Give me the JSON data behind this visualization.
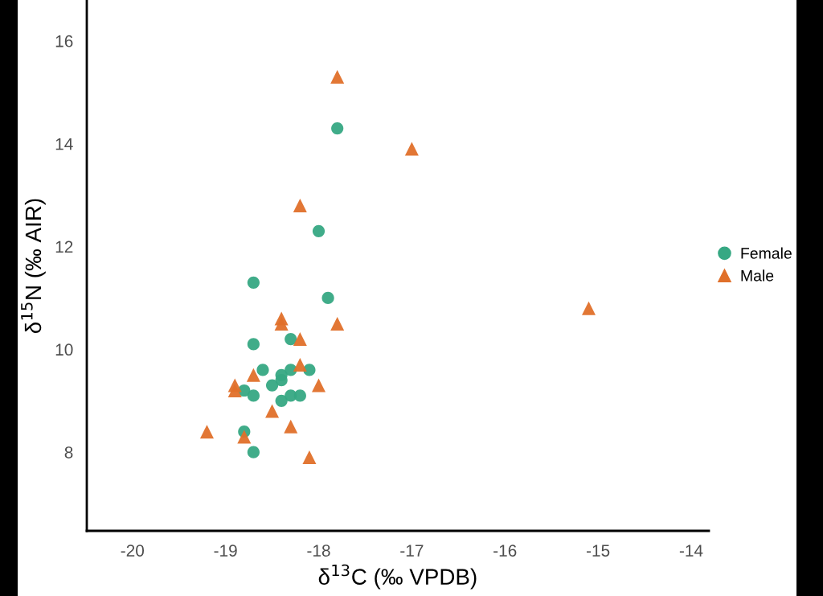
{
  "chart_data": {
    "type": "scatter",
    "xlabel": "δ$^{13}$C (‰ VPDB)",
    "ylabel": "δ$^{15}$N (‰ AIR)",
    "xlim": [
      -20.49,
      -13.81
    ],
    "xticks": [
      -20,
      -19,
      -18,
      -17,
      -16,
      -15,
      -14
    ],
    "ylim": [
      6.47,
      16.78
    ],
    "yticks": [
      8,
      10,
      12,
      14,
      16
    ],
    "grid": false,
    "legend": "right",
    "series": [
      {
        "name": "Female",
        "color": "#36a883",
        "marker": "circle",
        "x": [
          -17.8,
          -18.0,
          -18.7,
          -17.9,
          -18.7,
          -18.3,
          -18.6,
          -18.1,
          -18.3,
          -18.4,
          -18.4,
          -18.5,
          -18.8,
          -18.7,
          -18.3,
          -18.2,
          -18.4,
          -18.8,
          -18.7
        ],
        "values": [
          14.3,
          12.3,
          11.3,
          11.0,
          10.1,
          10.2,
          9.6,
          9.6,
          9.6,
          9.5,
          9.4,
          9.3,
          9.2,
          9.1,
          9.1,
          9.1,
          9.0,
          8.4,
          8.0
        ]
      },
      {
        "name": "Male",
        "color": "#e0702a",
        "marker": "triangle",
        "x": [
          -17.8,
          -17.0,
          -18.2,
          -15.1,
          -18.4,
          -18.4,
          -17.8,
          -18.2,
          -18.2,
          -18.7,
          -18.9,
          -18.9,
          -18.0,
          -18.5,
          -18.3,
          -19.2,
          -18.8,
          -18.1
        ],
        "values": [
          15.3,
          13.9,
          12.8,
          10.8,
          10.6,
          10.5,
          10.5,
          10.2,
          9.7,
          9.5,
          9.3,
          9.2,
          9.3,
          8.8,
          8.5,
          8.4,
          8.3,
          7.9
        ]
      }
    ]
  }
}
